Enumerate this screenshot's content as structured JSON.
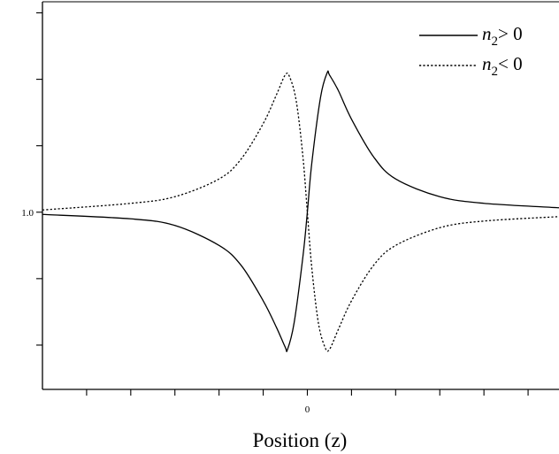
{
  "chart_data": {
    "type": "line",
    "title": "",
    "xlabel": "Position (z)",
    "ylabel": "",
    "xlim": [
      -6,
      5.7
    ],
    "ylim": [
      0.2,
      1.95
    ],
    "x_tick_labels": [
      {
        "value": 0,
        "label": "0"
      }
    ],
    "y_tick_labels": [
      {
        "value": 1.0,
        "label": "1.0"
      }
    ],
    "legend_position": "top-right",
    "grid": false,
    "series": [
      {
        "name": "n2> 0",
        "legend_base": "n",
        "legend_sub": "2",
        "legend_rest": "> 0",
        "style": "solid",
        "x": [
          -6,
          -4,
          -3,
          -2,
          -1.5,
          -1.0,
          -0.7,
          -0.5,
          -0.45,
          -0.3,
          -0.1,
          0,
          0.1,
          0.3,
          0.45,
          0.5,
          0.7,
          1.0,
          1.5,
          2,
          3,
          4,
          5.7
        ],
        "y": [
          0.99,
          0.97,
          0.94,
          0.85,
          0.76,
          0.6,
          0.48,
          0.39,
          0.38,
          0.5,
          0.8,
          1.0,
          1.22,
          1.52,
          1.63,
          1.62,
          1.55,
          1.42,
          1.25,
          1.15,
          1.07,
          1.04,
          1.02
        ]
      },
      {
        "name": "n2< 0",
        "legend_base": "n",
        "legend_sub": "2",
        "legend_rest": "< 0",
        "style": "dotted",
        "x": [
          -6,
          -4,
          -3,
          -2,
          -1.5,
          -1.0,
          -0.7,
          -0.5,
          -0.4,
          -0.25,
          -0.1,
          0,
          0.1,
          0.25,
          0.4,
          0.5,
          0.7,
          1.0,
          1.5,
          2,
          3,
          4,
          5.7
        ],
        "y": [
          1.01,
          1.04,
          1.07,
          1.15,
          1.24,
          1.4,
          1.53,
          1.62,
          1.61,
          1.5,
          1.25,
          1.0,
          0.75,
          0.5,
          0.39,
          0.38,
          0.47,
          0.6,
          0.76,
          0.85,
          0.93,
          0.96,
          0.98
        ]
      }
    ]
  }
}
